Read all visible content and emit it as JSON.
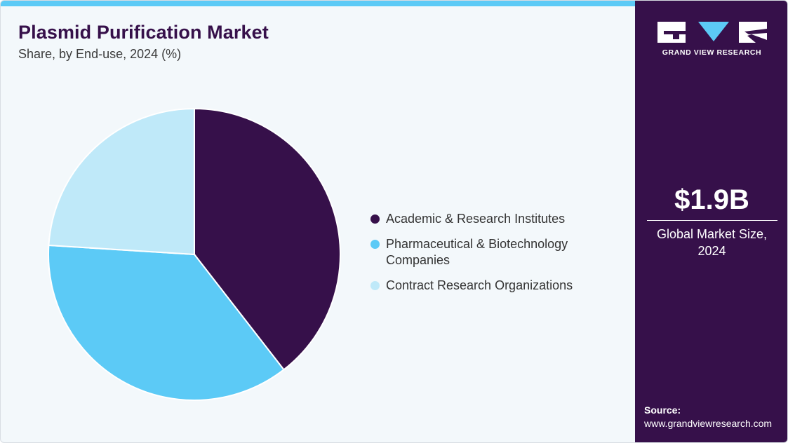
{
  "header": {
    "title": "Plasmid Purification Market",
    "subtitle": "Share, by End-use, 2024 (%)"
  },
  "colors": {
    "accent": "#5ccaf6",
    "panel": "#36104a",
    "background": "#f3f8fb"
  },
  "chart_data": {
    "type": "pie",
    "title": "Plasmid Purification Market",
    "subtitle": "Share, by End-use, 2024 (%)",
    "legend_position": "right",
    "slices": [
      {
        "label": "Academic & Research Institutes",
        "value": 39.5,
        "color": "#36104a"
      },
      {
        "label": "Pharmaceutical & Biotechnology Companies",
        "value": 36.5,
        "color": "#5ccaf6"
      },
      {
        "label": "Contract Research Organizations",
        "value": 24.0,
        "color": "#bfe9f9"
      }
    ]
  },
  "sidebar": {
    "logo_icon": "gvr-logo-icon",
    "logo_text": "GRAND VIEW RESEARCH",
    "stat_value": "$1.9B",
    "stat_label_line1": "Global Market Size,",
    "stat_label_line2": "2024",
    "source_heading": "Source:",
    "source_url": "www.grandviewresearch.com"
  }
}
